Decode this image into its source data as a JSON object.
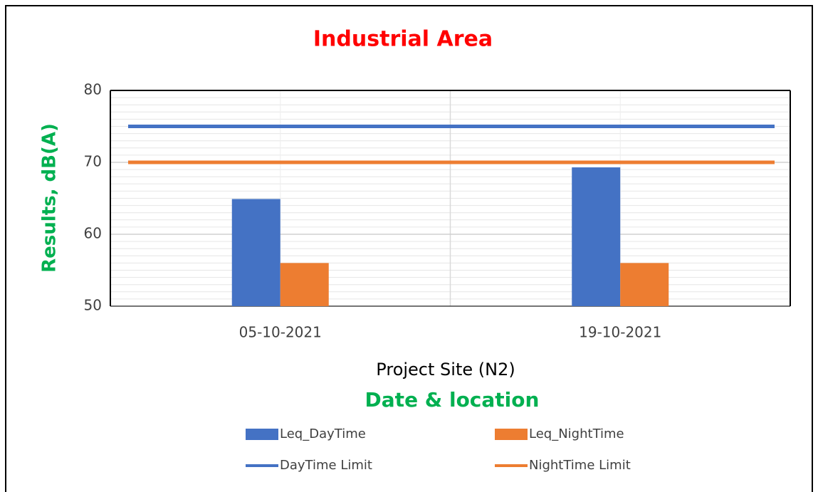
{
  "chart_data": {
    "type": "bar",
    "title": "Industrial Area",
    "subtitle": "Project Site (N2)",
    "x_label": "Date & location",
    "y_label": "Results, dB(A)",
    "categories": [
      "05-10-2021",
      "19-10-2021"
    ],
    "series": [
      {
        "name": "Leq_DayTime",
        "color": "#4472c4",
        "type": "bar",
        "values": [
          64.9,
          69.3
        ]
      },
      {
        "name": "Leq_NightTime",
        "color": "#ed7d31",
        "type": "bar",
        "values": [
          56,
          56
        ]
      },
      {
        "name": "DayTime Limit",
        "color": "#4472c4",
        "type": "line",
        "values": [
          75,
          75
        ]
      },
      {
        "name": "NightTime Limit",
        "color": "#ed7d31",
        "type": "line",
        "values": [
          70,
          70
        ]
      }
    ],
    "ylim": [
      50,
      80
    ],
    "yticks": [
      50,
      60,
      70,
      80
    ],
    "yminorticks": [
      51,
      52,
      53,
      54,
      55,
      56,
      57,
      58,
      59,
      61,
      62,
      63,
      64,
      65,
      66,
      67,
      68,
      69,
      71,
      72,
      73,
      74,
      75,
      76,
      77,
      78,
      79
    ],
    "grid": true,
    "legend": "bottom"
  }
}
